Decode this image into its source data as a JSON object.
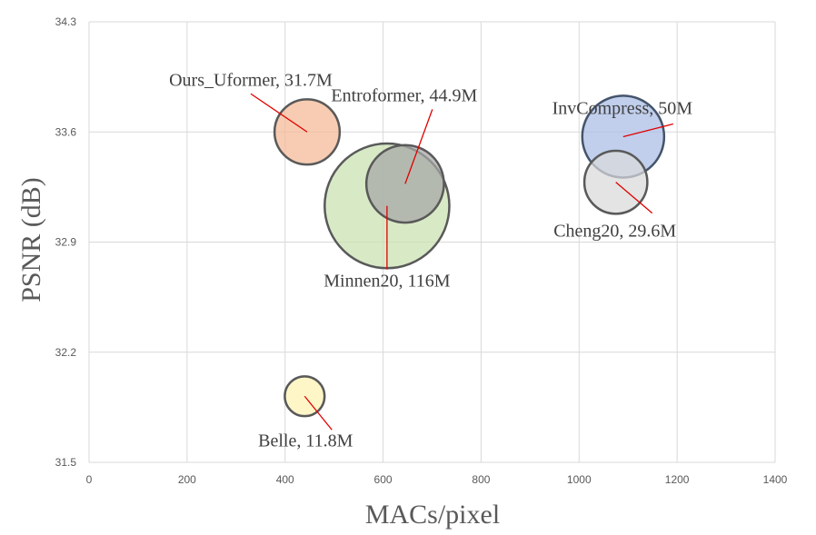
{
  "chart_data": {
    "type": "scatter",
    "subtype": "bubble",
    "xlabel": "MACs/pixel",
    "ylabel": "PSNR (dB)",
    "xlim": [
      0,
      1400
    ],
    "ylim": [
      31.5,
      34.3
    ],
    "x_ticks": [
      0,
      200,
      400,
      600,
      800,
      1000,
      1200,
      1400
    ],
    "y_ticks": [
      31.5,
      32.2,
      32.9,
      33.6,
      34.3
    ],
    "y_tick_labels": [
      "31.5",
      "32.2",
      "32.9",
      "33.6",
      "34.3"
    ],
    "grid": true,
    "legend": "none",
    "series": [
      {
        "label": "Minnen20, 116M",
        "x": 608,
        "y": 33.13,
        "params_m": 116,
        "fill": "#c9e0b0",
        "stroke": "#595959"
      },
      {
        "label": "Ours_Uformer, 31.7M",
        "x": 445,
        "y": 33.6,
        "params_m": 31.7,
        "fill": "#f4b894",
        "stroke": "#595959"
      },
      {
        "label": "Entroformer, 44.9M",
        "x": 645,
        "y": 33.27,
        "params_m": 44.9,
        "fill": "#a6a6a6",
        "stroke": "#595959"
      },
      {
        "label": "InvCompress, 50M",
        "x": 1090,
        "y": 33.57,
        "params_m": 50,
        "fill": "#a9bde6",
        "stroke": "#44546a"
      },
      {
        "label": "Cheng20, 29.6M",
        "x": 1075,
        "y": 33.28,
        "params_m": 29.6,
        "fill": "#d9d9d9",
        "stroke": "#595959"
      },
      {
        "label": "Belle, 11.8M",
        "x": 440,
        "y": 31.92,
        "params_m": 11.8,
        "fill": "#fff2b3",
        "stroke": "#595959"
      }
    ]
  }
}
